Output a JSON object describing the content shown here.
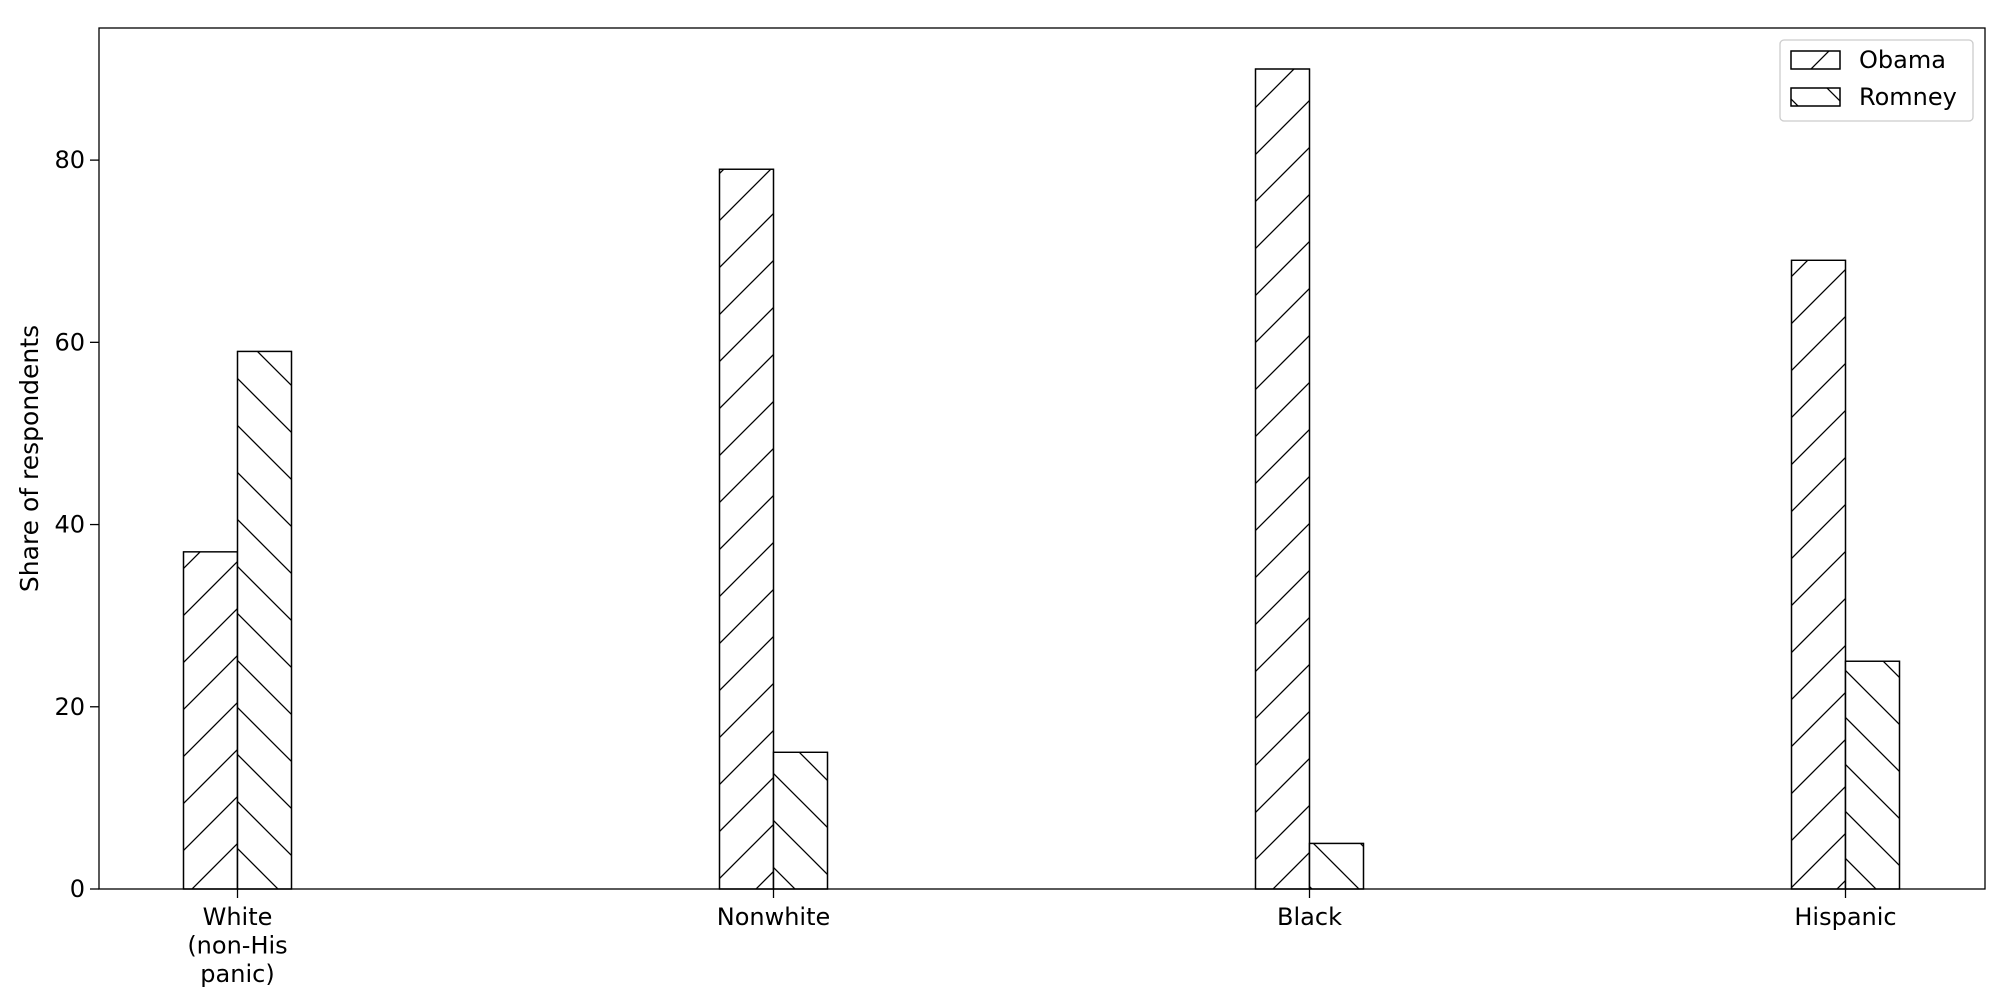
{
  "chart_data": {
    "type": "bar",
    "title": "",
    "xlabel": "",
    "ylabel": "Share of respondents",
    "categories": [
      [
        "White",
        "(non-His",
        "panic)"
      ],
      [
        "Nonwhite"
      ],
      [
        "Black"
      ],
      [
        "Hispanic"
      ]
    ],
    "series": [
      {
        "name": "Obama",
        "values": [
          37,
          79,
          90,
          69
        ],
        "hatch": "forward-slash"
      },
      {
        "name": "Romney",
        "values": [
          59,
          15,
          5,
          25
        ],
        "hatch": "back-slash"
      }
    ],
    "ylim": [
      0,
      94.5
    ],
    "yticks": [
      0,
      20,
      40,
      60,
      80
    ],
    "grid": false,
    "legend": "top-right",
    "colors": {
      "bar_fill": "#ffffff",
      "bar_edge": "#000000",
      "hatch": "#000000"
    }
  }
}
